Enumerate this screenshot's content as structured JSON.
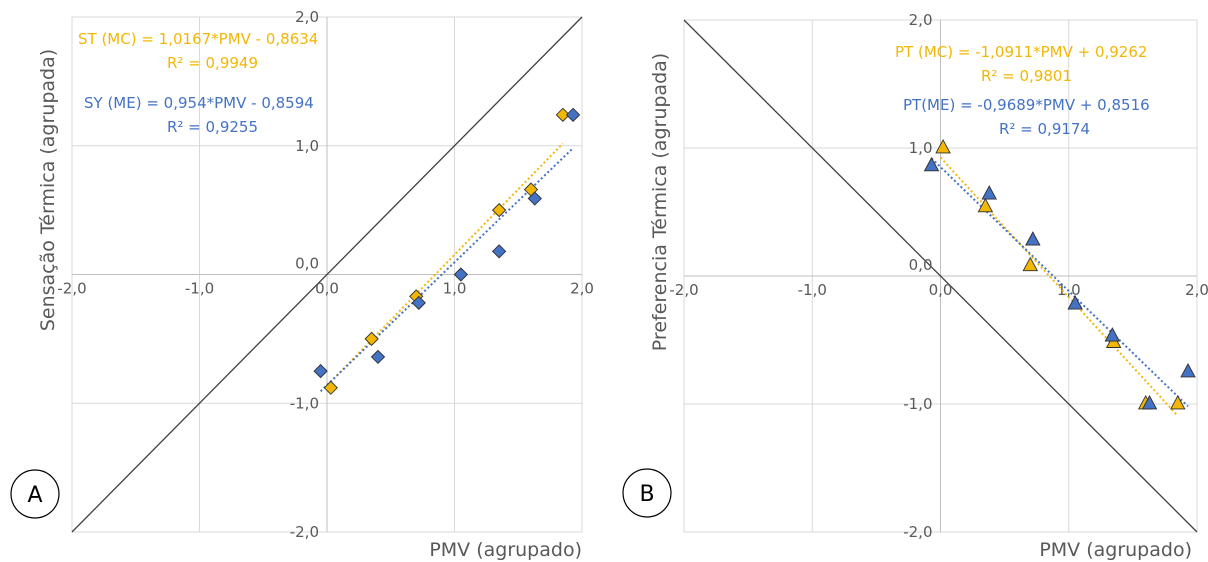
{
  "chart_data": [
    {
      "panel_label": "A",
      "type": "scatter",
      "xlabel": "PMV (agrupado)",
      "ylabel": "Sensação Térmica (agrupada)",
      "xlim": [
        -2.0,
        2.0
      ],
      "ylim": [
        -2.0,
        2.0
      ],
      "x_ticks": [
        "-2,0",
        "-1,0",
        "0,0",
        "1,0",
        "2,0"
      ],
      "y_ticks": [
        "-2,0",
        "-1,0",
        "0,0",
        "1,0",
        "2,0"
      ],
      "tick_values": [
        -2.0,
        -1.0,
        0.0,
        1.0,
        2.0
      ],
      "grid": true,
      "marker": "diamond",
      "reference_line": {
        "from": [
          -2.0,
          -2.0
        ],
        "to": [
          2.0,
          2.0
        ]
      },
      "series": [
        {
          "key": "MC",
          "color": "#f2b705",
          "points": [
            [
              0.03,
              -0.88
            ],
            [
              0.35,
              -0.5
            ],
            [
              0.7,
              -0.17
            ],
            [
              1.35,
              0.5
            ],
            [
              1.6,
              0.66
            ],
            [
              1.85,
              1.24
            ]
          ],
          "trendline": {
            "slope": 1.0167,
            "intercept": -0.8634,
            "x_range": [
              0.0,
              1.85
            ]
          },
          "equation": "ST (MC) = 1,0167*PMV - 0,8634",
          "r2": "R² = 0,9949"
        },
        {
          "key": "ME",
          "color": "#4472c4",
          "points": [
            [
              -0.05,
              -0.75
            ],
            [
              0.4,
              -0.64
            ],
            [
              0.72,
              -0.22
            ],
            [
              1.05,
              0.0
            ],
            [
              1.35,
              0.18
            ],
            [
              1.63,
              0.59
            ],
            [
              1.93,
              1.24
            ]
          ],
          "trendline": {
            "slope": 0.954,
            "intercept": -0.8594,
            "x_range": [
              -0.05,
              1.93
            ]
          },
          "equation": "SY (ME) = 0,954*PMV - 0,8594",
          "r2": "R² = 0,9255"
        }
      ]
    },
    {
      "panel_label": "B",
      "type": "scatter",
      "xlabel": "PMV (agrupado)",
      "ylabel": "Preferencia Térmica (agrupada)",
      "xlim": [
        -2.0,
        2.0
      ],
      "ylim": [
        -2.0,
        2.0
      ],
      "x_ticks": [
        "-2,0",
        "-1,0",
        "0,0",
        "1,0",
        "2,0"
      ],
      "y_ticks": [
        "-2,0",
        "-1,0",
        "0,0",
        "1,0",
        "2,0"
      ],
      "tick_values": [
        -2.0,
        -1.0,
        0.0,
        1.0,
        2.0
      ],
      "grid": true,
      "marker": "triangle",
      "reference_line": {
        "from": [
          -2.0,
          2.0
        ],
        "to": [
          2.0,
          -2.0
        ]
      },
      "series": [
        {
          "key": "MC",
          "color": "#f2b705",
          "points": [
            [
              0.02,
              1.0
            ],
            [
              0.35,
              0.54
            ],
            [
              0.7,
              0.08
            ],
            [
              1.35,
              -0.52
            ],
            [
              1.6,
              -1.0
            ],
            [
              1.85,
              -1.0
            ]
          ],
          "trendline": {
            "slope": -1.0911,
            "intercept": 0.9262,
            "x_range": [
              0.0,
              1.85
            ]
          },
          "equation": "PT (MC) = -1,0911*PMV + 0,9262",
          "r2": "R² = 0,9801"
        },
        {
          "key": "ME",
          "color": "#4472c4",
          "points": [
            [
              -0.07,
              0.86
            ],
            [
              0.38,
              0.64
            ],
            [
              0.72,
              0.28
            ],
            [
              1.05,
              -0.22
            ],
            [
              1.34,
              -0.47
            ],
            [
              1.63,
              -1.0
            ],
            [
              1.93,
              -0.75
            ]
          ],
          "trendline": {
            "slope": -0.9689,
            "intercept": 0.8516,
            "x_range": [
              -0.07,
              1.93
            ]
          },
          "equation": "PT(ME) = -0,9689*PMV + 0,8516",
          "r2": "R² = 0,9174"
        }
      ]
    }
  ]
}
